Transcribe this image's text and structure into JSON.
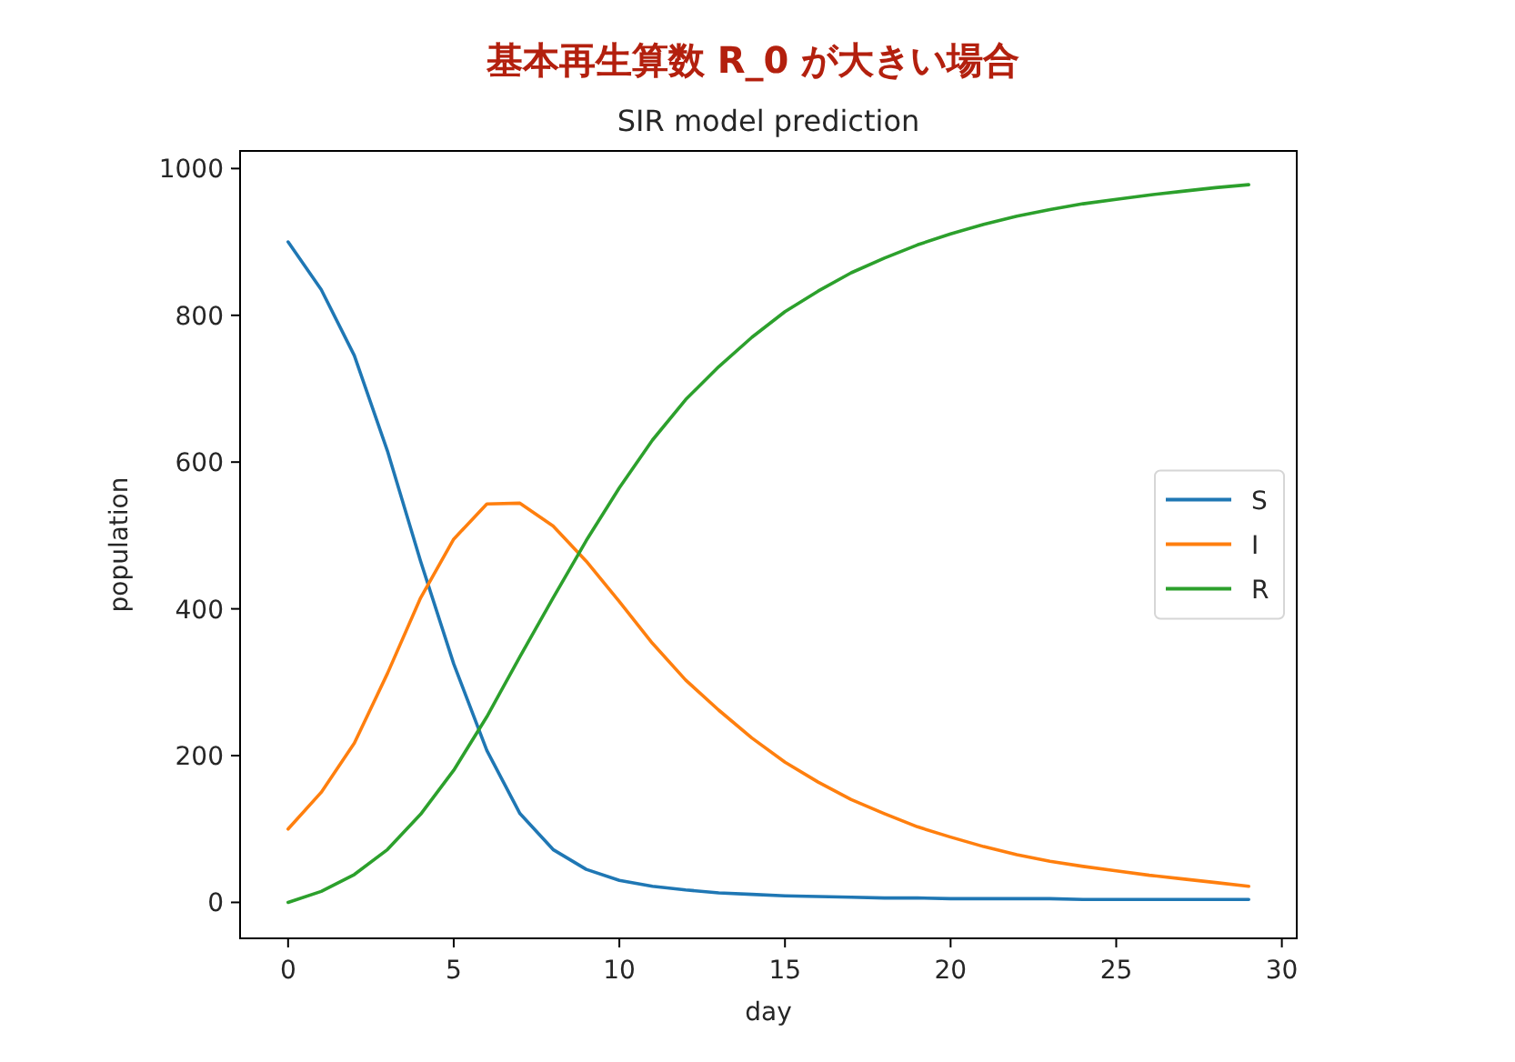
{
  "chart_data": {
    "type": "line",
    "title": "基本再生算数 R_0 が大きい場合",
    "subtitle": "SIR model prediction",
    "xlabel": "day",
    "ylabel": "population",
    "x": [
      0,
      1,
      2,
      3,
      4,
      5,
      6,
      7,
      8,
      9,
      10,
      11,
      12,
      13,
      14,
      15,
      16,
      17,
      18,
      19,
      20,
      21,
      22,
      23,
      24,
      25,
      26,
      27,
      28,
      29
    ],
    "series": [
      {
        "name": "S",
        "color": "#1f77b4",
        "values": [
          900,
          835,
          745,
          615,
          465,
          325,
          207,
          121,
          72,
          45,
          30,
          22,
          17,
          13,
          11,
          9,
          8,
          7,
          6,
          6,
          5,
          5,
          5,
          5,
          4,
          4,
          4,
          4,
          4,
          4
        ]
      },
      {
        "name": "I",
        "color": "#ff7f0e",
        "values": [
          100,
          150,
          217,
          312,
          415,
          495,
          543,
          544,
          513,
          465,
          410,
          353,
          303,
          262,
          224,
          191,
          164,
          140,
          121,
          103,
          89,
          76,
          65,
          56,
          49,
          43,
          37,
          32,
          27,
          22
        ]
      },
      {
        "name": "R",
        "color": "#2ca02c",
        "values": [
          0,
          15,
          38,
          72,
          120,
          180,
          253,
          335,
          415,
          493,
          565,
          630,
          685,
          730,
          770,
          805,
          833,
          858,
          878,
          896,
          911,
          924,
          935,
          944,
          952,
          958,
          964,
          969,
          974,
          978
        ]
      }
    ],
    "xlim": [
      -1.45,
      30.45
    ],
    "ylim": [
      -49,
      1024
    ],
    "xticks": [
      0,
      5,
      10,
      15,
      20,
      25,
      30
    ],
    "yticks": [
      0,
      200,
      400,
      600,
      800,
      1000
    ],
    "legend": "right",
    "line_style": "solid"
  }
}
